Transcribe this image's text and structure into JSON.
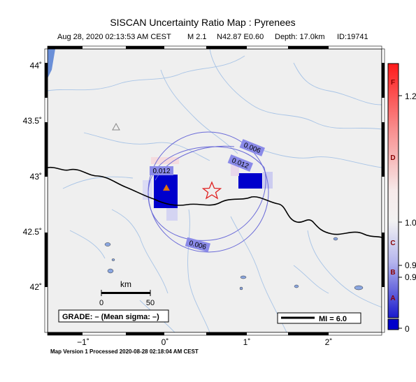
{
  "header": {
    "title": "SISCAN Uncertainty Ratio Map : Pyrenees",
    "subtitle_date": "Aug 28, 2020 02:13:53 AM CEST",
    "subtitle_mag": "M 2.1",
    "subtitle_loc": "N42.87 E0.60",
    "subtitle_depth": "Depth: 17.0km",
    "subtitle_id": "ID:19741"
  },
  "axes": {
    "lat_ticks": [
      "44˚",
      "43.5˚",
      "43˚",
      "42.5˚",
      "42˚"
    ],
    "lon_ticks": [
      "−1˚",
      "0˚",
      "1˚",
      "2˚"
    ]
  },
  "contours": {
    "labels": [
      "0.006",
      "0.012",
      "0.012",
      "0.006"
    ]
  },
  "scale_bar": {
    "unit": "km",
    "start": "0",
    "end": "50"
  },
  "grade_box": {
    "text": "GRADE: – (Mean sigma: –)"
  },
  "mi_box": {
    "text": "MI = 6.0"
  },
  "colorbar": {
    "grades": [
      "F",
      "D",
      "C",
      "B",
      "A"
    ],
    "values": [
      "1.2",
      "1.0",
      "0.9",
      "0.9",
      "0"
    ],
    "colors": {
      "top": "#ff1a1a",
      "mid": "#f2f2f2",
      "bottom": "#1a1acc",
      "swatch": "#0000cc"
    }
  },
  "footer": {
    "processed": "Map Version 1 Processed 2020-08-28 02:18:04 AM CEST"
  },
  "colors": {
    "land": "#efefef",
    "rivers": "#a8c4e6",
    "epicenter": "#e02020",
    "station": "#e07010",
    "cell_blue": "#0000cc",
    "contour": "#6a6ad8"
  }
}
